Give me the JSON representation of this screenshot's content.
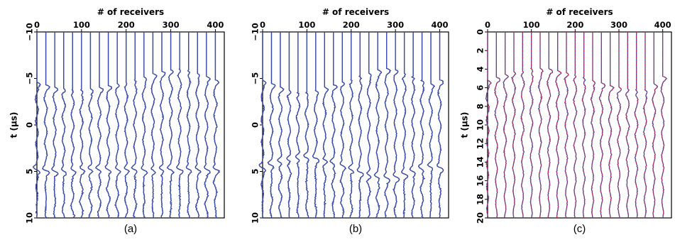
{
  "chart_data": [
    {
      "type": "line",
      "panel_label": "(a)",
      "xlabel": "# of receivers",
      "ylabel": "t (μs)",
      "x_ticks": [
        "0",
        "100",
        "200",
        "300",
        "400"
      ],
      "xlim": [
        0,
        420
      ],
      "y_ticks": [
        "−10",
        "−5",
        "0",
        "5",
        "10"
      ],
      "ylim": [
        -10,
        10
      ],
      "y_inverted": true,
      "trace_spacing_receivers": 20,
      "trace_receivers": [
        0,
        20,
        40,
        60,
        80,
        100,
        120,
        140,
        160,
        180,
        200,
        220,
        240,
        260,
        280,
        300,
        320,
        340,
        360,
        380,
        400
      ],
      "series": [
        {
          "color": "#3a4aa8",
          "first_arrival_us": [
            -4.6,
            -4.3,
            -4.0,
            -3.9,
            -3.8,
            -3.8,
            -3.9,
            -4.0,
            -4.2,
            -4.4,
            -4.6,
            -4.9,
            -5.2,
            -5.5,
            -5.7,
            -5.9,
            -6.0,
            -5.9,
            -5.6,
            -5.2,
            -4.8
          ]
        },
        {
          "color": "#3a4aa8",
          "second_arrival_us": [
            4.8,
            4.9,
            5.0,
            5.0,
            4.9,
            4.8,
            4.8,
            4.8,
            4.8,
            4.8,
            4.8,
            4.8,
            4.9,
            4.9,
            4.8,
            4.8,
            4.8,
            4.8,
            4.8,
            4.8,
            4.8
          ]
        }
      ]
    },
    {
      "type": "line",
      "panel_label": "(b)",
      "xlabel": "# of receivers",
      "ylabel": "",
      "x_ticks": [
        "0",
        "100",
        "200",
        "300",
        "400"
      ],
      "xlim": [
        0,
        420
      ],
      "y_ticks": [
        "−10",
        "−5",
        "0",
        "5",
        "10"
      ],
      "ylim": [
        -10,
        10
      ],
      "y_inverted": true,
      "trace_spacing_receivers": 20,
      "trace_receivers": [
        0,
        20,
        40,
        60,
        80,
        100,
        120,
        140,
        160,
        180,
        200,
        220,
        240,
        260,
        280,
        300,
        320,
        340,
        360,
        380,
        400
      ],
      "series": [
        {
          "color": "#3a4aa8",
          "first_arrival_us": [
            -4.8,
            -4.4,
            -4.0,
            -3.7,
            -3.5,
            -3.5,
            -3.7,
            -4.0,
            -4.3,
            -4.6,
            -4.9,
            -5.3,
            -5.6,
            -5.9,
            -6.0,
            -5.9,
            -5.6,
            -5.2,
            -4.8,
            -4.4,
            -4.8
          ]
        },
        {
          "color": "#3a4aa8",
          "second_arrival_us": [
            4.6,
            4.3,
            4.0,
            3.8,
            3.6,
            3.5,
            3.6,
            3.8,
            4.1,
            4.4,
            4.8,
            5.1,
            5.4,
            5.6,
            5.7,
            5.6,
            5.3,
            5.0,
            4.7,
            4.5,
            4.6
          ]
        }
      ]
    },
    {
      "type": "line",
      "panel_label": "(c)",
      "xlabel": "# of receivers",
      "ylabel": "t (μs)",
      "x_ticks": [
        "0",
        "100",
        "200",
        "300",
        "400"
      ],
      "xlim": [
        0,
        420
      ],
      "y_ticks": [
        "0",
        "2",
        "4",
        "6",
        "8",
        "10",
        "12",
        "14",
        "16",
        "18",
        "20"
      ],
      "ylim": [
        0,
        20
      ],
      "y_inverted": true,
      "trace_spacing_receivers": 20,
      "trace_receivers": [
        0,
        20,
        40,
        60,
        80,
        100,
        120,
        140,
        160,
        180,
        200,
        220,
        240,
        260,
        280,
        300,
        320,
        340,
        360,
        380,
        400
      ],
      "series": [
        {
          "color": "#3a4aa8",
          "first_arrival_us": [
            5.2,
            4.9,
            4.6,
            4.3,
            4.1,
            3.9,
            3.9,
            4.0,
            4.2,
            4.4,
            4.6,
            4.9,
            5.2,
            5.5,
            5.8,
            6.0,
            6.1,
            6.2,
            6.2,
            5.6,
            4.8
          ]
        },
        {
          "color": "#c8284a",
          "first_arrival_us": [
            5.2,
            4.9,
            4.6,
            4.3,
            4.1,
            3.9,
            3.9,
            4.0,
            4.2,
            4.4,
            4.6,
            4.9,
            5.2,
            5.5,
            5.8,
            6.0,
            6.1,
            6.2,
            6.2,
            5.6,
            4.8
          ]
        }
      ]
    }
  ],
  "colors": {
    "trace_blue": "#3a4aa8",
    "trace_red": "#c8284a",
    "axis": "#000000"
  }
}
